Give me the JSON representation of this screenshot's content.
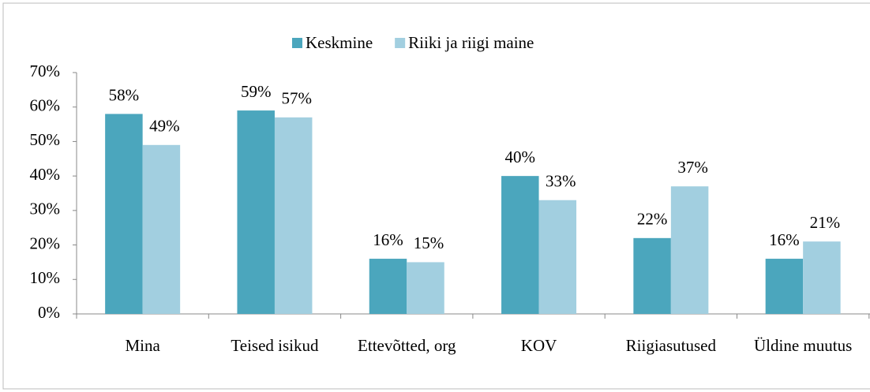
{
  "chart_data": {
    "type": "bar",
    "categories": [
      "Mina",
      "Teised isikud",
      "Ettevõtted, org",
      "KOV",
      "Riigiasutused",
      "Üldine muutus"
    ],
    "series": [
      {
        "name": "Keskmine",
        "color": "#4ba6bd",
        "values": [
          58,
          59,
          16,
          40,
          22,
          16
        ],
        "value_labels": [
          "58%",
          "59%",
          "16%",
          "40%",
          "22%",
          "16%"
        ]
      },
      {
        "name": "Riiki ja riigi maine",
        "color": "#a2cfe0",
        "values": [
          49,
          57,
          15,
          33,
          37,
          21
        ],
        "value_labels": [
          "49%",
          "57%",
          "15%",
          "33%",
          "37%",
          "21%"
        ]
      }
    ],
    "ylim": [
      0,
      70
    ],
    "yticks": [
      {
        "value": 0,
        "label": "0%"
      },
      {
        "value": 10,
        "label": "10%"
      },
      {
        "value": 20,
        "label": "20%"
      },
      {
        "value": 30,
        "label": "30%"
      },
      {
        "value": 40,
        "label": "40%"
      },
      {
        "value": 50,
        "label": "50%"
      },
      {
        "value": 60,
        "label": "60%"
      },
      {
        "value": 70,
        "label": "70%"
      }
    ],
    "legend": "top"
  }
}
